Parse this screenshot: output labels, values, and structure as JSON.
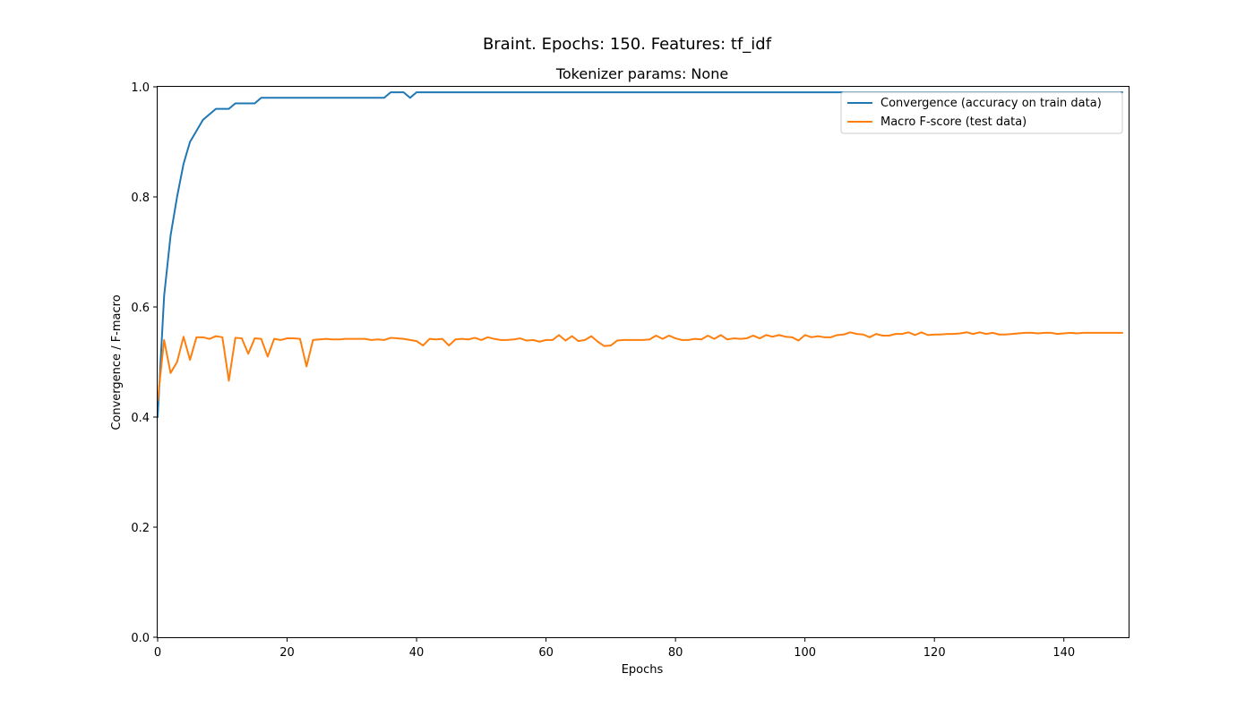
{
  "figure": {
    "suptitle": "Braint. Epochs: 150. Features: tf_idf"
  },
  "chart_data": {
    "type": "line",
    "title": "Tokenizer params: None",
    "xlabel": "Epochs",
    "ylabel": "Convergence / F-macro",
    "xlim": [
      0,
      150
    ],
    "ylim": [
      0.0,
      1.0
    ],
    "xticks": [
      0,
      20,
      40,
      60,
      80,
      100,
      120,
      140
    ],
    "xtick_labels": [
      "0",
      "20",
      "40",
      "60",
      "80",
      "100",
      "120",
      "140"
    ],
    "yticks": [
      0.0,
      0.2,
      0.4,
      0.6,
      0.8,
      1.0
    ],
    "ytick_labels": [
      "0.0",
      "0.2",
      "0.4",
      "0.6",
      "0.8",
      "1.0"
    ],
    "grid": false,
    "legend_position": "upper right",
    "x": [
      0,
      1,
      2,
      3,
      4,
      5,
      6,
      7,
      8,
      9,
      10,
      11,
      12,
      13,
      14,
      15,
      16,
      17,
      18,
      19,
      20,
      21,
      22,
      23,
      24,
      25,
      26,
      27,
      28,
      29,
      30,
      31,
      32,
      33,
      34,
      35,
      36,
      37,
      38,
      39,
      40,
      41,
      42,
      43,
      44,
      45,
      46,
      47,
      48,
      49,
      50,
      51,
      52,
      53,
      54,
      55,
      56,
      57,
      58,
      59,
      60,
      61,
      62,
      63,
      64,
      65,
      66,
      67,
      68,
      69,
      70,
      71,
      72,
      73,
      74,
      75,
      76,
      77,
      78,
      79,
      80,
      81,
      82,
      83,
      84,
      85,
      86,
      87,
      88,
      89,
      90,
      91,
      92,
      93,
      94,
      95,
      96,
      97,
      98,
      99,
      100,
      101,
      102,
      103,
      104,
      105,
      106,
      107,
      108,
      109,
      110,
      111,
      112,
      113,
      114,
      115,
      116,
      117,
      118,
      119,
      120,
      121,
      122,
      123,
      124,
      125,
      126,
      127,
      128,
      129,
      130,
      131,
      132,
      133,
      134,
      135,
      136,
      137,
      138,
      139,
      140,
      141,
      142,
      143,
      144,
      145,
      146,
      147,
      148,
      149
    ],
    "series": [
      {
        "name": "Convergence (accuracy on train data)",
        "color": "#1f77b4",
        "values": [
          0.4,
          0.62,
          0.73,
          0.8,
          0.86,
          0.9,
          0.92,
          0.94,
          0.95,
          0.96,
          0.96,
          0.96,
          0.97,
          0.97,
          0.97,
          0.97,
          0.98,
          0.98,
          0.98,
          0.98,
          0.98,
          0.98,
          0.98,
          0.98,
          0.98,
          0.98,
          0.98,
          0.98,
          0.98,
          0.98,
          0.98,
          0.98,
          0.98,
          0.98,
          0.98,
          0.98,
          0.99,
          0.99,
          0.99,
          0.98,
          0.99,
          0.99,
          0.99,
          0.99,
          0.99,
          0.99,
          0.99,
          0.99,
          0.99,
          0.99,
          0.99,
          0.99,
          0.99,
          0.99,
          0.99,
          0.99,
          0.99,
          0.99,
          0.99,
          0.99,
          0.99,
          0.99,
          0.99,
          0.99,
          0.99,
          0.99,
          0.99,
          0.99,
          0.99,
          0.99,
          0.99,
          0.99,
          0.99,
          0.99,
          0.99,
          0.99,
          0.99,
          0.99,
          0.99,
          0.99,
          0.99,
          0.99,
          0.99,
          0.99,
          0.99,
          0.99,
          0.99,
          0.99,
          0.99,
          0.99,
          0.99,
          0.99,
          0.99,
          0.99,
          0.99,
          0.99,
          0.99,
          0.99,
          0.99,
          0.99,
          0.99,
          0.99,
          0.99,
          0.99,
          0.99,
          0.99,
          0.99,
          0.99,
          0.99,
          0.99,
          0.99,
          0.99,
          0.99,
          0.99,
          0.99,
          0.99,
          0.99,
          0.99,
          0.99,
          0.99,
          0.99,
          0.99,
          0.99,
          0.99,
          0.99,
          0.99,
          0.99,
          0.99,
          0.99,
          0.99,
          0.99,
          0.99,
          0.99,
          0.99,
          0.99,
          0.99,
          0.99,
          0.99,
          0.99,
          0.99,
          0.99,
          0.99,
          0.99,
          0.99,
          0.99,
          0.99,
          0.99,
          0.99,
          0.99,
          0.99
        ]
      },
      {
        "name": "Macro F-score (test data)",
        "color": "#ff7f0e",
        "values": [
          0.43,
          0.54,
          0.48,
          0.5,
          0.546,
          0.504,
          0.545,
          0.545,
          0.542,
          0.547,
          0.545,
          0.466,
          0.544,
          0.543,
          0.515,
          0.543,
          0.542,
          0.51,
          0.542,
          0.54,
          0.543,
          0.543,
          0.542,
          0.492,
          0.54,
          0.541,
          0.542,
          0.541,
          0.541,
          0.542,
          0.542,
          0.542,
          0.542,
          0.54,
          0.541,
          0.54,
          0.544,
          0.543,
          0.542,
          0.54,
          0.538,
          0.53,
          0.542,
          0.541,
          0.542,
          0.53,
          0.541,
          0.542,
          0.541,
          0.544,
          0.54,
          0.545,
          0.542,
          0.54,
          0.54,
          0.541,
          0.543,
          0.539,
          0.54,
          0.537,
          0.54,
          0.54,
          0.549,
          0.539,
          0.547,
          0.538,
          0.54,
          0.547,
          0.537,
          0.529,
          0.53,
          0.539,
          0.54,
          0.54,
          0.54,
          0.54,
          0.541,
          0.548,
          0.542,
          0.548,
          0.543,
          0.54,
          0.54,
          0.542,
          0.541,
          0.548,
          0.542,
          0.549,
          0.541,
          0.543,
          0.542,
          0.543,
          0.548,
          0.543,
          0.549,
          0.546,
          0.549,
          0.546,
          0.545,
          0.539,
          0.549,
          0.545,
          0.547,
          0.545,
          0.545,
          0.549,
          0.55,
          0.554,
          0.551,
          0.55,
          0.545,
          0.551,
          0.548,
          0.548,
          0.551,
          0.551,
          0.554,
          0.549,
          0.554,
          0.549,
          0.55,
          0.55,
          0.551,
          0.551,
          0.552,
          0.554,
          0.551,
          0.554,
          0.551,
          0.553,
          0.55,
          0.55,
          0.551,
          0.552,
          0.553,
          0.553,
          0.552,
          0.553,
          0.553,
          0.551,
          0.552,
          0.553,
          0.552,
          0.553,
          0.553,
          0.553,
          0.553,
          0.553,
          0.553,
          0.553
        ]
      }
    ]
  }
}
